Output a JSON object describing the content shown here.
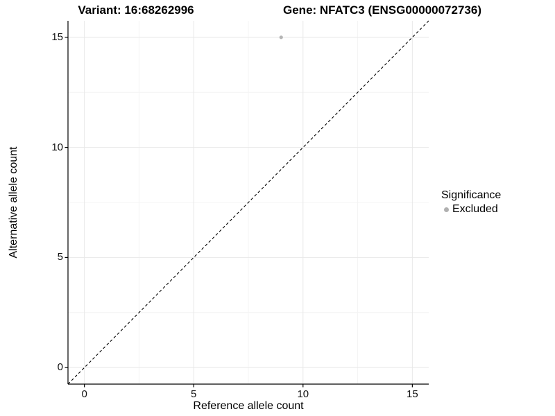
{
  "chart_data": {
    "type": "scatter",
    "title_parts": [
      "Variant: 16:68262996",
      "Gene: NFATC3 (ENSG00000072736)"
    ],
    "xlabel": "Reference allele count",
    "ylabel": "Alternative allele count",
    "xlim": [
      -0.75,
      15.75
    ],
    "ylim": [
      -0.75,
      15.75
    ],
    "x_ticks": [
      0,
      5,
      10,
      15
    ],
    "y_ticks": [
      0,
      5,
      10,
      15
    ],
    "x_tick_labels": [
      "0",
      "5",
      "10",
      "15"
    ],
    "y_tick_labels": [
      "0",
      "5",
      "10",
      "15"
    ],
    "x_minor_ticks": [
      2.5,
      7.5,
      12.5
    ],
    "y_minor_ticks": [
      2.5,
      7.5,
      12.5
    ],
    "grid": true,
    "series": [
      {
        "name": "Excluded",
        "color": "#b5b5b5",
        "marker": "circle",
        "marker_radius_px": 2.6,
        "points": [
          [
            9,
            15
          ]
        ]
      }
    ],
    "reference_line": {
      "equation": "y = x",
      "style": "dashed",
      "color": "#000000",
      "from": [
        -0.75,
        -0.75
      ],
      "to": [
        15.75,
        15.75
      ]
    },
    "legend": {
      "title": "Significance",
      "position": "right",
      "items": [
        {
          "label": "Excluded",
          "color": "#b0b0b0",
          "marker": "circle"
        }
      ]
    },
    "colors": {
      "background": "#ffffff",
      "grid_major": "#e8e8e8",
      "grid_minor": "#f4f4f4",
      "axis": "#000000",
      "tick_label": "#111111"
    }
  }
}
